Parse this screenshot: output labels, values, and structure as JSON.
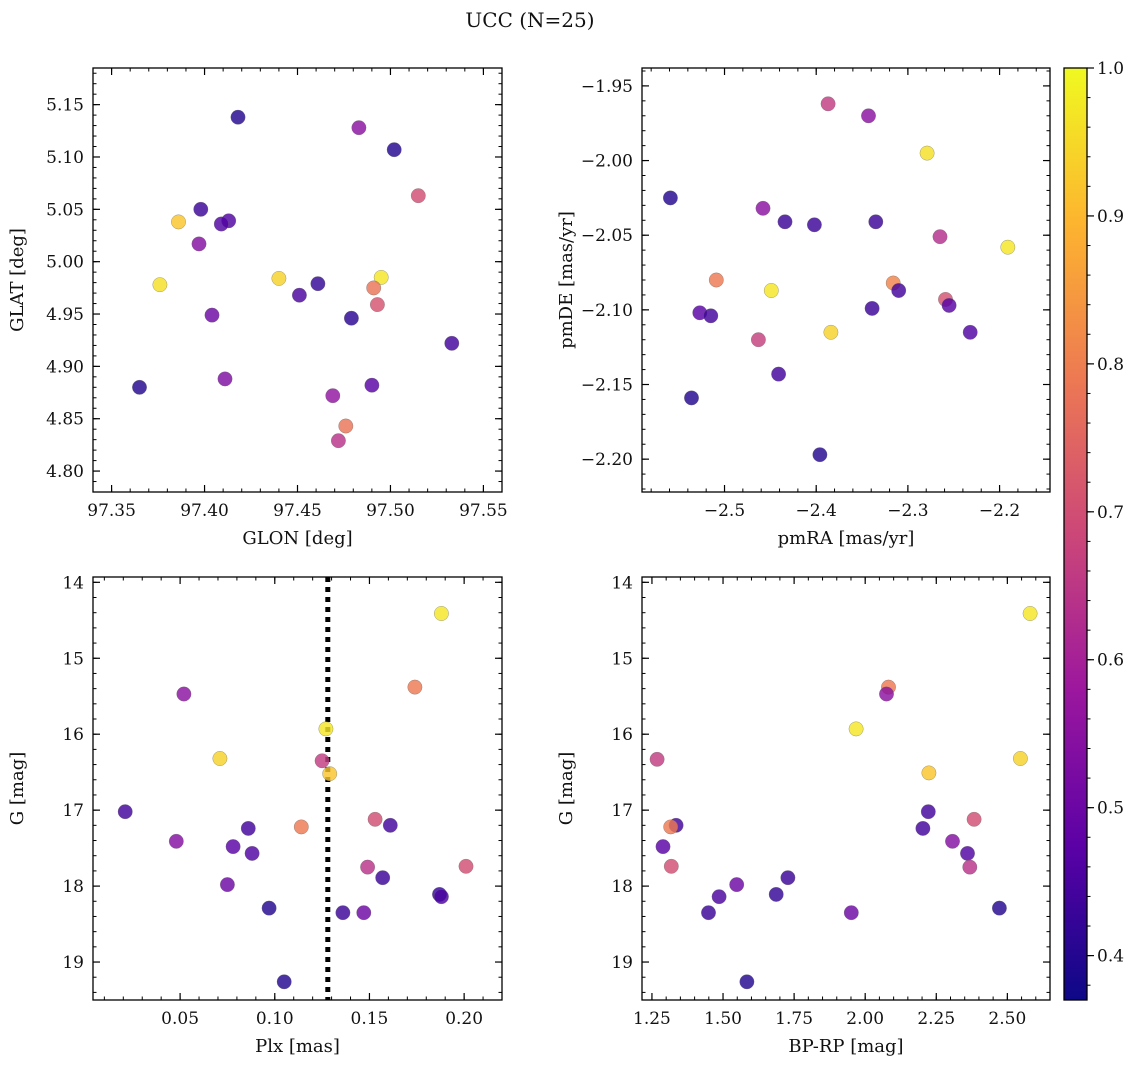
{
  "figure_title": "UCC (N=25)",
  "colormap": [
    "#0d0887",
    "#5c01a6",
    "#9c179e",
    "#cc4778",
    "#ed7953",
    "#fdb42f",
    "#f0f921"
  ],
  "colorbar": {
    "min": 0.37,
    "max": 1.0,
    "ticks": [
      0.4,
      0.5,
      0.6,
      0.7,
      0.8,
      0.9,
      1.0
    ],
    "tick_labels": [
      "0.4",
      "0.5",
      "0.6",
      "0.7",
      "0.8",
      "0.9",
      "1.0"
    ]
  },
  "chart_data": [
    {
      "type": "scatter",
      "xlabel": "GLON [deg]",
      "ylabel": "GLAT [deg]",
      "xlim": [
        97.34,
        97.56
      ],
      "ylim": [
        4.78,
        5.185
      ],
      "xticks": [
        97.35,
        97.4,
        97.45,
        97.5,
        97.55
      ],
      "xtick_labels": [
        "97.35",
        "97.40",
        "97.45",
        "97.50",
        "97.55"
      ],
      "yticks": [
        4.8,
        4.85,
        4.9,
        4.95,
        5.0,
        5.05,
        5.1,
        5.15
      ],
      "ytick_labels": [
        "4.80",
        "4.85",
        "4.90",
        "4.95",
        "5.00",
        "5.05",
        "5.10",
        "5.15"
      ],
      "points": [
        {
          "x": 97.418,
          "y": 5.138,
          "c": 0.4
        },
        {
          "x": 97.483,
          "y": 5.128,
          "c": 0.55
        },
        {
          "x": 97.502,
          "y": 5.107,
          "c": 0.4
        },
        {
          "x": 97.515,
          "y": 5.063,
          "c": 0.7
        },
        {
          "x": 97.398,
          "y": 5.05,
          "c": 0.43
        },
        {
          "x": 97.386,
          "y": 5.038,
          "c": 0.92
        },
        {
          "x": 97.413,
          "y": 5.039,
          "c": 0.46
        },
        {
          "x": 97.409,
          "y": 5.036,
          "c": 0.46
        },
        {
          "x": 97.397,
          "y": 5.017,
          "c": 0.54
        },
        {
          "x": 97.495,
          "y": 4.985,
          "c": 0.97
        },
        {
          "x": 97.44,
          "y": 4.984,
          "c": 0.94
        },
        {
          "x": 97.376,
          "y": 4.978,
          "c": 0.96
        },
        {
          "x": 97.461,
          "y": 4.979,
          "c": 0.42
        },
        {
          "x": 97.491,
          "y": 4.975,
          "c": 0.78
        },
        {
          "x": 97.451,
          "y": 4.968,
          "c": 0.45
        },
        {
          "x": 97.493,
          "y": 4.959,
          "c": 0.71
        },
        {
          "x": 97.404,
          "y": 4.949,
          "c": 0.5
        },
        {
          "x": 97.479,
          "y": 4.946,
          "c": 0.41
        },
        {
          "x": 97.533,
          "y": 4.922,
          "c": 0.44
        },
        {
          "x": 97.411,
          "y": 4.888,
          "c": 0.53
        },
        {
          "x": 97.49,
          "y": 4.882,
          "c": 0.47
        },
        {
          "x": 97.365,
          "y": 4.88,
          "c": 0.4
        },
        {
          "x": 97.469,
          "y": 4.872,
          "c": 0.56
        },
        {
          "x": 97.476,
          "y": 4.843,
          "c": 0.78
        },
        {
          "x": 97.472,
          "y": 4.829,
          "c": 0.64
        }
      ]
    },
    {
      "type": "scatter",
      "xlabel": "pmRA [mas/yr]",
      "ylabel": "pmDE [mas/yr]",
      "xlim": [
        -2.59,
        -2.145
      ],
      "ylim": [
        -2.222,
        -1.938
      ],
      "xticks": [
        -2.5,
        -2.4,
        -2.3,
        -2.2
      ],
      "xtick_labels": [
        "−2.5",
        "−2.4",
        "−2.3",
        "−2.2"
      ],
      "yticks": [
        -2.2,
        -2.15,
        -2.1,
        -2.05,
        -2.0,
        -1.95
      ],
      "ytick_labels": [
        "−2.20",
        "−2.15",
        "−2.10",
        "−2.05",
        "−2.00",
        "−1.95"
      ],
      "points": [
        {
          "x": -2.387,
          "y": -1.962,
          "c": 0.66
        },
        {
          "x": -2.343,
          "y": -1.97,
          "c": 0.55
        },
        {
          "x": -2.279,
          "y": -1.995,
          "c": 0.96
        },
        {
          "x": -2.559,
          "y": -2.025,
          "c": 0.4
        },
        {
          "x": -2.458,
          "y": -2.032,
          "c": 0.55
        },
        {
          "x": -2.434,
          "y": -2.041,
          "c": 0.43
        },
        {
          "x": -2.402,
          "y": -2.043,
          "c": 0.43
        },
        {
          "x": -2.335,
          "y": -2.041,
          "c": 0.43
        },
        {
          "x": -2.265,
          "y": -2.051,
          "c": 0.63
        },
        {
          "x": -2.191,
          "y": -2.058,
          "c": 0.97
        },
        {
          "x": -2.509,
          "y": -2.08,
          "c": 0.79
        },
        {
          "x": -2.316,
          "y": -2.082,
          "c": 0.81
        },
        {
          "x": -2.449,
          "y": -2.087,
          "c": 0.97
        },
        {
          "x": -2.31,
          "y": -2.087,
          "c": 0.44
        },
        {
          "x": -2.259,
          "y": -2.093,
          "c": 0.71
        },
        {
          "x": -2.255,
          "y": -2.097,
          "c": 0.47
        },
        {
          "x": -2.339,
          "y": -2.099,
          "c": 0.43
        },
        {
          "x": -2.527,
          "y": -2.102,
          "c": 0.47
        },
        {
          "x": -2.515,
          "y": -2.104,
          "c": 0.44
        },
        {
          "x": -2.384,
          "y": -2.115,
          "c": 0.94
        },
        {
          "x": -2.232,
          "y": -2.115,
          "c": 0.46
        },
        {
          "x": -2.463,
          "y": -2.12,
          "c": 0.67
        },
        {
          "x": -2.441,
          "y": -2.143,
          "c": 0.44
        },
        {
          "x": -2.536,
          "y": -2.159,
          "c": 0.4
        },
        {
          "x": -2.396,
          "y": -2.197,
          "c": 0.4
        }
      ]
    },
    {
      "type": "scatter",
      "xlabel": "Plx [mas]",
      "ylabel": "G [mag]",
      "xlim": [
        0.004,
        0.22
      ],
      "ylim": [
        19.5,
        13.93
      ],
      "y_inverted": true,
      "xticks": [
        0.05,
        0.1,
        0.15,
        0.2
      ],
      "xtick_labels": [
        "0.05",
        "0.10",
        "0.15",
        "0.20"
      ],
      "yticks": [
        14,
        15,
        16,
        17,
        18,
        19
      ],
      "ytick_labels": [
        "14",
        "15",
        "16",
        "17",
        "18",
        "19"
      ],
      "vline": {
        "x": 0.128,
        "style": "dotted"
      },
      "points": [
        {
          "x": 0.188,
          "y": 14.41,
          "c": 0.97
        },
        {
          "x": 0.174,
          "y": 15.38,
          "c": 0.79
        },
        {
          "x": 0.052,
          "y": 15.47,
          "c": 0.55
        },
        {
          "x": 0.127,
          "y": 15.93,
          "c": 0.97
        },
        {
          "x": 0.071,
          "y": 16.32,
          "c": 0.94
        },
        {
          "x": 0.125,
          "y": 16.35,
          "c": 0.66
        },
        {
          "x": 0.129,
          "y": 16.52,
          "c": 0.92
        },
        {
          "x": 0.021,
          "y": 17.02,
          "c": 0.44
        },
        {
          "x": 0.153,
          "y": 17.12,
          "c": 0.7
        },
        {
          "x": 0.161,
          "y": 17.2,
          "c": 0.44
        },
        {
          "x": 0.114,
          "y": 17.22,
          "c": 0.79
        },
        {
          "x": 0.086,
          "y": 17.24,
          "c": 0.44
        },
        {
          "x": 0.048,
          "y": 17.41,
          "c": 0.54
        },
        {
          "x": 0.078,
          "y": 17.48,
          "c": 0.47
        },
        {
          "x": 0.088,
          "y": 17.57,
          "c": 0.46
        },
        {
          "x": 0.149,
          "y": 17.75,
          "c": 0.64
        },
        {
          "x": 0.201,
          "y": 17.74,
          "c": 0.7
        },
        {
          "x": 0.157,
          "y": 17.89,
          "c": 0.43
        },
        {
          "x": 0.075,
          "y": 17.98,
          "c": 0.5
        },
        {
          "x": 0.187,
          "y": 18.11,
          "c": 0.42
        },
        {
          "x": 0.188,
          "y": 18.14,
          "c": 0.45
        },
        {
          "x": 0.097,
          "y": 18.29,
          "c": 0.4
        },
        {
          "x": 0.136,
          "y": 18.35,
          "c": 0.43
        },
        {
          "x": 0.147,
          "y": 18.35,
          "c": 0.5
        },
        {
          "x": 0.105,
          "y": 19.26,
          "c": 0.4
        }
      ]
    },
    {
      "type": "scatter",
      "xlabel": "BP-RP [mag]",
      "ylabel": "G [mag]",
      "xlim": [
        1.215,
        2.65
      ],
      "ylim": [
        19.5,
        13.93
      ],
      "y_inverted": true,
      "xticks": [
        1.25,
        1.5,
        1.75,
        2.0,
        2.25,
        2.5
      ],
      "xtick_labels": [
        "1.25",
        "1.50",
        "1.75",
        "2.00",
        "2.25",
        "2.50"
      ],
      "yticks": [
        14,
        15,
        16,
        17,
        18,
        19
      ],
      "ytick_labels": [
        "14",
        "15",
        "16",
        "17",
        "18",
        "19"
      ],
      "points": [
        {
          "x": 2.58,
          "y": 14.41,
          "c": 0.97
        },
        {
          "x": 2.082,
          "y": 15.38,
          "c": 0.79
        },
        {
          "x": 2.075,
          "y": 15.47,
          "c": 0.55
        },
        {
          "x": 1.968,
          "y": 15.93,
          "c": 0.97
        },
        {
          "x": 2.546,
          "y": 16.32,
          "c": 0.94
        },
        {
          "x": 1.268,
          "y": 16.33,
          "c": 0.66
        },
        {
          "x": 2.224,
          "y": 16.51,
          "c": 0.92
        },
        {
          "x": 2.222,
          "y": 17.02,
          "c": 0.44
        },
        {
          "x": 2.383,
          "y": 17.12,
          "c": 0.7
        },
        {
          "x": 1.335,
          "y": 17.2,
          "c": 0.44
        },
        {
          "x": 1.316,
          "y": 17.22,
          "c": 0.79
        },
        {
          "x": 2.203,
          "y": 17.24,
          "c": 0.44
        },
        {
          "x": 2.307,
          "y": 17.41,
          "c": 0.54
        },
        {
          "x": 1.289,
          "y": 17.48,
          "c": 0.47
        },
        {
          "x": 2.36,
          "y": 17.57,
          "c": 0.46
        },
        {
          "x": 2.368,
          "y": 17.75,
          "c": 0.64
        },
        {
          "x": 1.318,
          "y": 17.74,
          "c": 0.7
        },
        {
          "x": 1.728,
          "y": 17.89,
          "c": 0.43
        },
        {
          "x": 1.548,
          "y": 17.98,
          "c": 0.5
        },
        {
          "x": 1.687,
          "y": 18.11,
          "c": 0.42
        },
        {
          "x": 1.486,
          "y": 18.14,
          "c": 0.45
        },
        {
          "x": 2.472,
          "y": 18.29,
          "c": 0.4
        },
        {
          "x": 1.449,
          "y": 18.35,
          "c": 0.43
        },
        {
          "x": 1.951,
          "y": 18.35,
          "c": 0.5
        },
        {
          "x": 1.584,
          "y": 19.26,
          "c": 0.4
        }
      ]
    }
  ]
}
